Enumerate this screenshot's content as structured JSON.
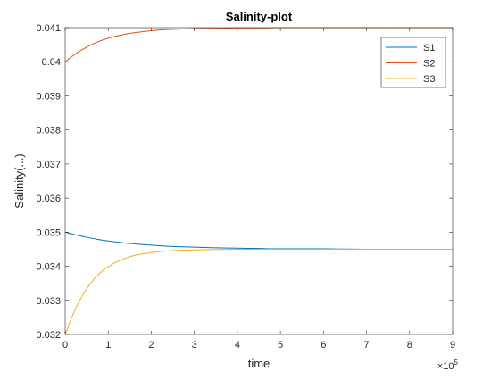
{
  "chart_data": {
    "type": "line",
    "title": "Salinity-plot",
    "xlabel": "time",
    "ylabel": "Salinity(...)",
    "x_exponent_label": "×10",
    "x_exponent_power": "5",
    "x_multiplier": 100000,
    "xlim": [
      0,
      900000
    ],
    "ylim": [
      0.032,
      0.041
    ],
    "xticks": [
      0,
      100000,
      200000,
      300000,
      400000,
      500000,
      600000,
      700000,
      800000,
      900000
    ],
    "xtick_labels": [
      "0",
      "1",
      "2",
      "3",
      "4",
      "5",
      "6",
      "7",
      "8",
      "9"
    ],
    "yticks": [
      0.032,
      0.033,
      0.034,
      0.035,
      0.036,
      0.037,
      0.038,
      0.039,
      0.04,
      0.041
    ],
    "ytick_labels": [
      "0.032",
      "0.033",
      "0.034",
      "0.035",
      "0.036",
      "0.037",
      "0.038",
      "0.039",
      "0.04",
      "0.041"
    ],
    "grid": false,
    "legend_position": "top-right",
    "x": [
      0,
      25000,
      50000,
      75000,
      100000,
      150000,
      200000,
      250000,
      300000,
      350000,
      400000,
      450000,
      500000,
      550000,
      600000,
      700000,
      800000,
      900000
    ],
    "series": [
      {
        "name": "S1",
        "color": "#0072BD",
        "values": [
          0.035,
          0.03492,
          0.03485,
          0.03479,
          0.03474,
          0.03467,
          0.03462,
          0.03458,
          0.03456,
          0.03454,
          0.03453,
          0.03452,
          0.03451,
          0.03451,
          0.03451,
          0.0345,
          0.0345,
          0.0345
        ]
      },
      {
        "name": "S2",
        "color": "#D95319",
        "values": [
          0.04,
          0.04024,
          0.04043,
          0.04058,
          0.04069,
          0.04083,
          0.04091,
          0.04095,
          0.04097,
          0.04098,
          0.04099,
          0.04099,
          0.041,
          0.041,
          0.041,
          0.041,
          0.041,
          0.041
        ]
      },
      {
        "name": "S3",
        "color": "#EDB120",
        "values": [
          0.032,
          0.03278,
          0.03334,
          0.03373,
          0.03399,
          0.03428,
          0.0344,
          0.03446,
          0.03448,
          0.03449,
          0.0345,
          0.0345,
          0.0345,
          0.0345,
          0.0345,
          0.0345,
          0.0345,
          0.0345
        ]
      }
    ]
  }
}
